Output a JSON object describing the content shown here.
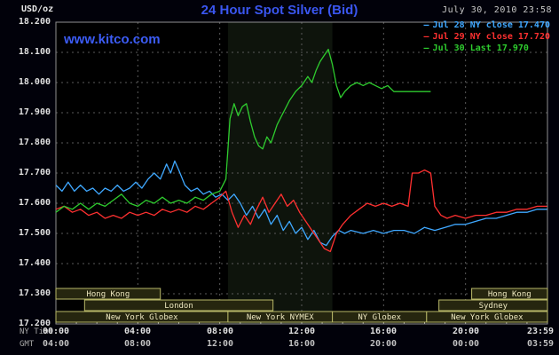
{
  "header": {
    "units": "USD/oz",
    "title": "24 Hour Spot Silver (Bid)",
    "datetime": "July 30, 2010 23:58",
    "watermark": "www.kitco.com"
  },
  "legend": {
    "marker": "—",
    "items": [
      {
        "label": "Jul 28 NY close 17.470",
        "color": "#3fa8ff"
      },
      {
        "label": "Jul 29 NY close 17.720",
        "color": "#ff3030"
      },
      {
        "label": "Jul 30 Last 17.970",
        "color": "#2ecc2e"
      }
    ]
  },
  "axes": {
    "ny_label": "NY Time",
    "gmt_label": "GMT",
    "y_ticks": [
      "18.200",
      "18.100",
      "18.000",
      "17.900",
      "17.800",
      "17.700",
      "17.600",
      "17.500",
      "17.400",
      "17.300",
      "17.200"
    ],
    "ny_ticks": [
      "00:00",
      "04:00",
      "08:00",
      "12:00",
      "16:00",
      "20:00",
      "23:59"
    ],
    "gmt_ticks": [
      "04:00",
      "08:00",
      "12:00",
      "16:00",
      "20:00",
      "00:00",
      "03:59"
    ]
  },
  "sessions": [
    {
      "label": "Hong Kong",
      "row": 0,
      "start": 0.0,
      "end": 5.1
    },
    {
      "label": "Hong Kong",
      "row": 0,
      "start": 20.3,
      "end": 24.0
    },
    {
      "label": "London",
      "row": 1,
      "start": 1.4,
      "end": 10.6
    },
    {
      "label": "Sydney",
      "row": 1,
      "start": 18.7,
      "end": 24.0
    },
    {
      "label": "New York Globex",
      "row": 2,
      "start": 0.0,
      "end": 8.4
    },
    {
      "label": "New York NYMEX",
      "row": 2,
      "start": 8.4,
      "end": 13.5
    },
    {
      "label": "NY Globex",
      "row": 2,
      "start": 13.5,
      "end": 18.1
    },
    {
      "label": "New York Globex",
      "row": 2,
      "start": 18.1,
      "end": 24.0
    }
  ],
  "chart_data": {
    "type": "line",
    "title": "24 Hour Spot Silver (Bid)",
    "ylabel": "USD/oz",
    "xlabel": "NY Time (hours)",
    "ylim": [
      17.2,
      18.2
    ],
    "xlim": [
      0,
      24
    ],
    "grid": "dashed",
    "legend_position": "top-right",
    "y_gridlines": [
      17.3,
      17.4,
      17.5,
      17.6,
      17.7,
      17.8,
      17.9,
      18.0,
      18.1
    ],
    "x_gridlines": [
      4,
      8,
      12,
      16,
      20
    ],
    "nymex_band": [
      8.4,
      13.5
    ],
    "series": [
      {
        "id": "jul28",
        "name": "Jul 28",
        "close_label": "NY close 17.470",
        "color": "#3fa8ff",
        "points": [
          [
            0,
            17.66
          ],
          [
            0.3,
            17.64
          ],
          [
            0.6,
            17.67
          ],
          [
            0.9,
            17.64
          ],
          [
            1.2,
            17.66
          ],
          [
            1.5,
            17.64
          ],
          [
            1.8,
            17.65
          ],
          [
            2.1,
            17.63
          ],
          [
            2.4,
            17.65
          ],
          [
            2.7,
            17.64
          ],
          [
            3,
            17.66
          ],
          [
            3.3,
            17.64
          ],
          [
            3.6,
            17.65
          ],
          [
            3.9,
            17.67
          ],
          [
            4.2,
            17.65
          ],
          [
            4.5,
            17.68
          ],
          [
            4.8,
            17.7
          ],
          [
            5.1,
            17.68
          ],
          [
            5.4,
            17.73
          ],
          [
            5.6,
            17.7
          ],
          [
            5.8,
            17.74
          ],
          [
            6,
            17.71
          ],
          [
            6.3,
            17.66
          ],
          [
            6.6,
            17.64
          ],
          [
            6.9,
            17.65
          ],
          [
            7.2,
            17.63
          ],
          [
            7.5,
            17.64
          ],
          [
            7.8,
            17.62
          ],
          [
            8.1,
            17.63
          ],
          [
            8.4,
            17.61
          ],
          [
            8.7,
            17.63
          ],
          [
            9,
            17.6
          ],
          [
            9.3,
            17.56
          ],
          [
            9.6,
            17.59
          ],
          [
            9.9,
            17.55
          ],
          [
            10.2,
            17.58
          ],
          [
            10.5,
            17.53
          ],
          [
            10.8,
            17.56
          ],
          [
            11.1,
            17.51
          ],
          [
            11.4,
            17.54
          ],
          [
            11.7,
            17.5
          ],
          [
            12,
            17.52
          ],
          [
            12.3,
            17.48
          ],
          [
            12.6,
            17.51
          ],
          [
            12.9,
            17.47
          ],
          [
            13.2,
            17.46
          ],
          [
            13.5,
            17.49
          ],
          [
            13.8,
            17.51
          ],
          [
            14.1,
            17.5
          ],
          [
            14.4,
            17.51
          ],
          [
            15,
            17.5
          ],
          [
            15.5,
            17.51
          ],
          [
            16,
            17.5
          ],
          [
            16.5,
            17.51
          ],
          [
            17,
            17.51
          ],
          [
            17.5,
            17.5
          ],
          [
            18,
            17.52
          ],
          [
            18.5,
            17.51
          ],
          [
            19,
            17.52
          ],
          [
            19.5,
            17.53
          ],
          [
            20,
            17.53
          ],
          [
            20.5,
            17.54
          ],
          [
            21,
            17.55
          ],
          [
            21.5,
            17.55
          ],
          [
            22,
            17.56
          ],
          [
            22.5,
            17.57
          ],
          [
            23,
            17.57
          ],
          [
            23.5,
            17.58
          ],
          [
            23.98,
            17.58
          ]
        ]
      },
      {
        "id": "jul29",
        "name": "Jul 29",
        "close_label": "NY close 17.720",
        "color": "#ff3030",
        "points": [
          [
            0,
            17.58
          ],
          [
            0.4,
            17.59
          ],
          [
            0.8,
            17.57
          ],
          [
            1.2,
            17.58
          ],
          [
            1.6,
            17.56
          ],
          [
            2,
            17.57
          ],
          [
            2.4,
            17.55
          ],
          [
            2.8,
            17.56
          ],
          [
            3.2,
            17.55
          ],
          [
            3.6,
            17.57
          ],
          [
            4,
            17.56
          ],
          [
            4.4,
            17.57
          ],
          [
            4.8,
            17.56
          ],
          [
            5.2,
            17.58
          ],
          [
            5.6,
            17.57
          ],
          [
            6,
            17.58
          ],
          [
            6.4,
            17.57
          ],
          [
            6.8,
            17.59
          ],
          [
            7.2,
            17.58
          ],
          [
            7.6,
            17.6
          ],
          [
            8,
            17.62
          ],
          [
            8.3,
            17.64
          ],
          [
            8.6,
            17.57
          ],
          [
            8.9,
            17.52
          ],
          [
            9.2,
            17.56
          ],
          [
            9.5,
            17.53
          ],
          [
            9.8,
            17.58
          ],
          [
            10.1,
            17.62
          ],
          [
            10.4,
            17.57
          ],
          [
            10.7,
            17.6
          ],
          [
            11,
            17.63
          ],
          [
            11.3,
            17.59
          ],
          [
            11.6,
            17.61
          ],
          [
            11.9,
            17.57
          ],
          [
            12.2,
            17.54
          ],
          [
            12.5,
            17.51
          ],
          [
            12.8,
            17.48
          ],
          [
            13.1,
            17.45
          ],
          [
            13.4,
            17.44
          ],
          [
            13.7,
            17.5
          ],
          [
            14,
            17.53
          ],
          [
            14.4,
            17.56
          ],
          [
            14.8,
            17.58
          ],
          [
            15.2,
            17.6
          ],
          [
            15.6,
            17.59
          ],
          [
            16,
            17.6
          ],
          [
            16.4,
            17.59
          ],
          [
            16.8,
            17.6
          ],
          [
            17.2,
            17.59
          ],
          [
            17.4,
            17.7
          ],
          [
            17.7,
            17.7
          ],
          [
            18,
            17.71
          ],
          [
            18.3,
            17.7
          ],
          [
            18.5,
            17.59
          ],
          [
            18.8,
            17.56
          ],
          [
            19.1,
            17.55
          ],
          [
            19.5,
            17.56
          ],
          [
            20,
            17.55
          ],
          [
            20.5,
            17.56
          ],
          [
            21,
            17.56
          ],
          [
            21.5,
            17.57
          ],
          [
            22,
            17.57
          ],
          [
            22.5,
            17.58
          ],
          [
            23,
            17.58
          ],
          [
            23.5,
            17.59
          ],
          [
            23.98,
            17.59
          ]
        ]
      },
      {
        "id": "jul30",
        "name": "Jul 30",
        "close_label": "Last 17.970",
        "color": "#2ecc2e",
        "points": [
          [
            0,
            17.57
          ],
          [
            0.4,
            17.59
          ],
          [
            0.8,
            17.58
          ],
          [
            1.2,
            17.6
          ],
          [
            1.6,
            17.58
          ],
          [
            2,
            17.6
          ],
          [
            2.4,
            17.59
          ],
          [
            2.8,
            17.61
          ],
          [
            3.2,
            17.63
          ],
          [
            3.6,
            17.6
          ],
          [
            4,
            17.59
          ],
          [
            4.4,
            17.61
          ],
          [
            4.8,
            17.6
          ],
          [
            5.2,
            17.62
          ],
          [
            5.6,
            17.6
          ],
          [
            6,
            17.61
          ],
          [
            6.4,
            17.6
          ],
          [
            6.8,
            17.62
          ],
          [
            7.2,
            17.61
          ],
          [
            7.6,
            17.63
          ],
          [
            8,
            17.64
          ],
          [
            8.3,
            17.68
          ],
          [
            8.5,
            17.88
          ],
          [
            8.7,
            17.93
          ],
          [
            8.9,
            17.89
          ],
          [
            9.1,
            17.92
          ],
          [
            9.3,
            17.93
          ],
          [
            9.5,
            17.87
          ],
          [
            9.7,
            17.82
          ],
          [
            9.9,
            17.79
          ],
          [
            10.1,
            17.78
          ],
          [
            10.3,
            17.82
          ],
          [
            10.5,
            17.8
          ],
          [
            10.8,
            17.86
          ],
          [
            11.1,
            17.9
          ],
          [
            11.4,
            17.94
          ],
          [
            11.7,
            17.97
          ],
          [
            12,
            17.99
          ],
          [
            12.3,
            18.02
          ],
          [
            12.5,
            18.0
          ],
          [
            12.7,
            18.04
          ],
          [
            12.9,
            18.07
          ],
          [
            13.1,
            18.09
          ],
          [
            13.3,
            18.11
          ],
          [
            13.5,
            18.06
          ],
          [
            13.7,
            17.99
          ],
          [
            13.9,
            17.95
          ],
          [
            14.1,
            17.97
          ],
          [
            14.4,
            17.99
          ],
          [
            14.7,
            18.0
          ],
          [
            15,
            17.99
          ],
          [
            15.3,
            18.0
          ],
          [
            15.6,
            17.99
          ],
          [
            15.9,
            17.98
          ],
          [
            16.2,
            17.99
          ],
          [
            16.5,
            17.97
          ],
          [
            16.8,
            17.97
          ],
          [
            17.2,
            17.97
          ],
          [
            18.3,
            17.97
          ]
        ]
      }
    ]
  }
}
